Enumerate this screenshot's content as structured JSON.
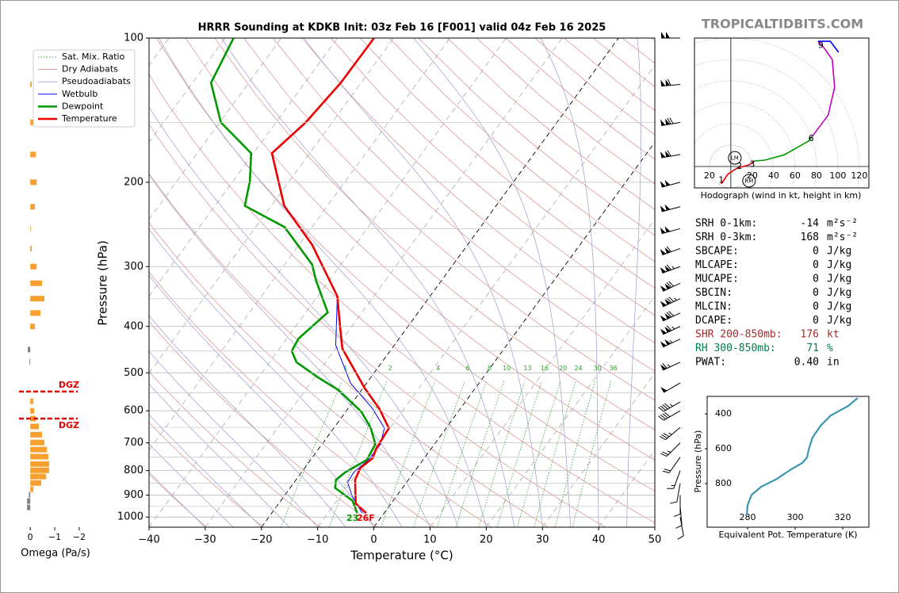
{
  "site": "TROPICALTIDBITS.COM",
  "chart_data": [
    {
      "type": "skewt",
      "title": "HRRR Sounding at KDKB Init: 03z Feb 16 [F001] valid 04z Feb 16 2025",
      "xlabel": "Temperature (°C)",
      "ylabel": "Pressure (hPa)",
      "xlim": [
        -40,
        50
      ],
      "xticks": [
        {
          "value": -40,
          "label": "−40"
        },
        {
          "value": -30,
          "label": "−30"
        },
        {
          "value": -20,
          "label": "−20"
        },
        {
          "value": -10,
          "label": "−10"
        },
        0,
        10,
        20,
        30,
        40,
        50
      ],
      "ylim": [
        1050,
        100
      ],
      "yticks": [
        100,
        200,
        300,
        400,
        500,
        600,
        700,
        800,
        900,
        1000
      ],
      "minor_yticks": [
        150,
        250,
        350,
        450,
        550,
        650,
        750,
        850,
        950
      ],
      "log_y": true,
      "grid": true,
      "legend": "upper left",
      "background": [
        {
          "name": "Sat. Mix. Ratio",
          "color": "#2ca02c",
          "values": [
            1,
            2,
            4,
            6,
            8,
            10,
            13,
            16,
            20,
            24,
            30,
            36
          ]
        },
        {
          "name": "Dry Adiabats",
          "color": "#d98a8a"
        },
        {
          "name": "Pseudoadiabats",
          "color": "#9a9ad0"
        }
      ],
      "series": [
        {
          "name": "Wetbulb",
          "color": "#0000ff",
          "pressure": [
            981,
            902,
            846,
            806,
            760,
            705,
            652,
            593,
            525,
            438,
            346
          ],
          "values": [
            -3.9,
            -8.0,
            -10.5,
            -10.7,
            -9.7,
            -9.6,
            -11,
            -15.7,
            -22.9,
            -30.4,
            -36.5
          ]
        },
        {
          "name": "Dewpoint",
          "color": "#009900",
          "pressure": [
            981,
            925,
            869,
            836,
            806,
            760,
            705,
            652,
            603,
            543,
            511,
            475,
            450,
            424,
            374,
            321,
            297,
            248,
            224,
            199,
            174,
            150,
            124,
            100
          ],
          "values": [
            -4.8,
            -7.2,
            -12,
            -12.9,
            -12.2,
            -10,
            -10.5,
            -13.4,
            -17.2,
            -24.1,
            -29.4,
            -35.2,
            -37.5,
            -37.9,
            -36.1,
            -42.3,
            -45.1,
            -54.9,
            -64.7,
            -67,
            -70.4,
            -79.8,
            -86.7,
            -88.5
          ]
        },
        {
          "name": "Temperature",
          "color": "#ee0000",
          "pressure": [
            981,
            937,
            836,
            790,
            754,
            718,
            683,
            652,
            593,
            539,
            445,
            396,
            346,
            270,
            224,
            174,
            150,
            124,
            100
          ],
          "values": [
            -3.2,
            -6.3,
            -9.5,
            -10.1,
            -9.2,
            -9.8,
            -10,
            -10.2,
            -14.5,
            -19.6,
            -28.8,
            -32.4,
            -36.5,
            -47.7,
            -57.7,
            -66.7,
            -64.7,
            -63.6,
            -63.5
          ]
        }
      ],
      "surface_labels": [
        {
          "text": "23",
          "color": "#009900"
        },
        {
          "text": "26F",
          "color": "#ee0000"
        }
      ],
      "wind_barbs": {
        "pressure": [
          100,
          125,
          150,
          175,
          200,
          225,
          250,
          275,
          300,
          325,
          350,
          375,
          400,
          425,
          475,
          525,
          575,
          600,
          650,
          700,
          750,
          800,
          850,
          900,
          950,
          1000
        ],
        "speed": [
          100,
          110,
          120,
          110,
          100,
          100,
          100,
          110,
          115,
          120,
          125,
          120,
          115,
          105,
          65,
          50,
          45,
          40,
          35,
          25,
          20,
          15,
          10,
          10,
          10,
          10
        ],
        "direction": [
          270,
          265,
          260,
          260,
          255,
          255,
          255,
          250,
          250,
          245,
          245,
          245,
          245,
          245,
          245,
          240,
          240,
          240,
          230,
          225,
          215,
          200,
          190,
          180,
          175,
          170
        ]
      }
    },
    {
      "type": "omega",
      "xlabel": "Omega (Pa/s)",
      "xlim": [
        0.2,
        -2.1
      ],
      "xticks": [
        0,
        {
          "value": -1,
          "label": "−1"
        },
        {
          "value": -2,
          "label": "−2"
        }
      ],
      "pressure": [
        125,
        150,
        175,
        200,
        225,
        250,
        275,
        300,
        325,
        350,
        375,
        400,
        447,
        474,
        573,
        600,
        623,
        647,
        673,
        699,
        723,
        748,
        775,
        799,
        823,
        849,
        875,
        899,
        926,
        955
      ],
      "values": [
        -0.06,
        -0.13,
        -0.23,
        -0.26,
        -0.19,
        -0.03,
        -0.06,
        -0.26,
        -0.48,
        -0.58,
        -0.42,
        -0.19,
        0.1,
        0.03,
        -0.13,
        -0.16,
        -0.23,
        -0.35,
        -0.48,
        -0.58,
        -0.68,
        -0.74,
        -0.77,
        -0.77,
        -0.65,
        -0.45,
        -0.13,
        0.06,
        0.13,
        0.13
      ],
      "color": "#f7a030",
      "positive_color": "#808080",
      "dgz": [
        {
          "value": 547,
          "label": "DGZ"
        },
        {
          "value": 623,
          "label": "DGZ"
        }
      ],
      "dgz_color": "#e00000"
    },
    {
      "type": "hodograph",
      "xlabel": "Hodograph (wind in kt, height in km)",
      "xlim": [
        -34,
        129
      ],
      "ylim": [
        -20,
        120
      ],
      "rings": [
        {
          "value": -20,
          "label": "20"
        },
        20,
        40,
        60,
        80,
        100,
        120
      ],
      "series": [
        {
          "color": "#ee0000",
          "x": [
            -8.9,
            -3,
            5.9,
            17,
            22
          ],
          "values": [
            -16.3,
            -7.4,
            -1.5,
            1.5,
            5.2
          ]
        },
        {
          "color": "#009900",
          "x": [
            22,
            31.9,
            50,
            72.6,
            76
          ],
          "values": [
            5.2,
            5.9,
            11,
            23.7,
            28
          ]
        },
        {
          "color": "#c000c0",
          "x": [
            76,
            91,
            97,
            94.8,
            87,
            81.5
          ],
          "values": [
            28,
            48,
            74,
            100,
            111,
            117
          ]
        },
        {
          "color": "#0000ff",
          "x": [
            81.5,
            93,
            100.7
          ],
          "values": [
            117,
            117,
            106.7
          ]
        }
      ],
      "height_labels": [
        {
          "text": "1",
          "x": -9,
          "y": -13
        },
        {
          "text": "2",
          "x": 8,
          "y": 0
        },
        {
          "text": "3",
          "x": 20,
          "y": 2
        },
        {
          "text": "6",
          "x": 75,
          "y": 26
        },
        {
          "text": "9",
          "x": 84,
          "y": 113
        }
      ],
      "storm_motion": [
        {
          "label": "LM",
          "x": 3.7,
          "y": 8.1
        },
        {
          "label": "RM",
          "x": 17,
          "y": -13.3
        }
      ]
    },
    {
      "type": "line",
      "xlabel": "Equivalent Pot. Temperature (K)",
      "ylabel": "Pressure (hPa)",
      "xlim": [
        263,
        331
      ],
      "xticks": [
        280,
        300,
        320
      ],
      "ylim": [
        1050,
        300
      ],
      "yticks": [
        400,
        600,
        800
      ],
      "color": "#3a96b0",
      "x": [
        279.7,
        280,
        281.7,
        285.7,
        292.3,
        298.3,
        303,
        305,
        305.7,
        307.3,
        310.7,
        315,
        322.3,
        326.3
      ],
      "values": [
        981,
        923,
        864,
        818,
        773,
        718,
        682,
        650,
        605,
        536,
        468,
        409,
        355,
        309
      ]
    }
  ],
  "stats": [
    {
      "label": "SRH 0-1km:",
      "value": -14,
      "unit": "m²s⁻²"
    },
    {
      "label": "SRH 0-3km:",
      "value": 168,
      "unit": "m²s⁻²"
    },
    {
      "label": "SBCAPE:",
      "value": 0,
      "unit": "J/kg"
    },
    {
      "label": "MLCAPE:",
      "value": 0,
      "unit": "J/kg"
    },
    {
      "label": "MUCAPE:",
      "value": 0,
      "unit": "J/kg"
    },
    {
      "label": "SBCIN:",
      "value": 0,
      "unit": "J/kg"
    },
    {
      "label": "MLCIN:",
      "value": 0,
      "unit": "J/kg"
    },
    {
      "label": "DCAPE:",
      "value": 0,
      "unit": "J/kg"
    },
    {
      "label": "SHR 200-850mb:",
      "value": 176,
      "unit": "kt",
      "color": "#a52a2a"
    },
    {
      "label": "RH 300-850mb:",
      "value": 71,
      "unit": "%",
      "color": "#00804a"
    },
    {
      "label": "PWAT:",
      "value": 0.4,
      "value_label": "0.40",
      "unit": "in"
    }
  ]
}
